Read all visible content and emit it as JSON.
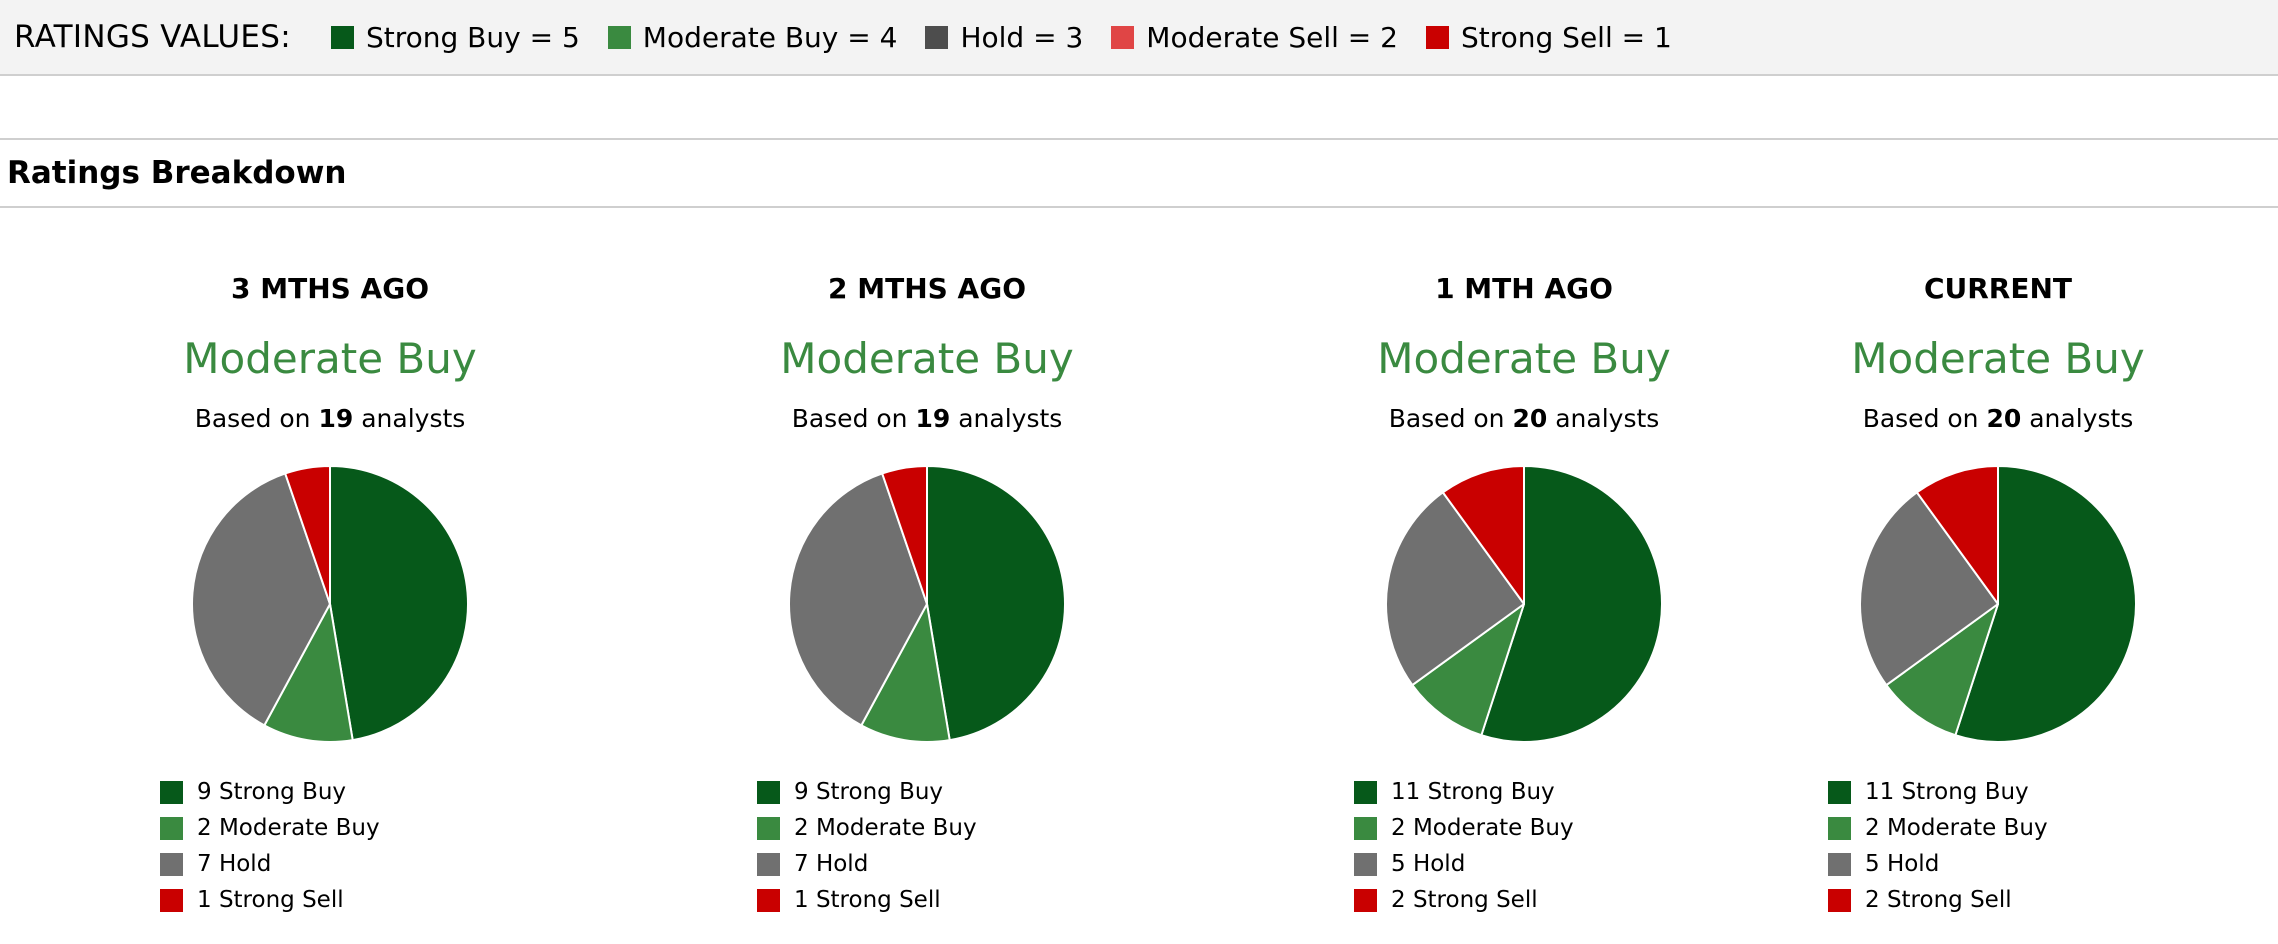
{
  "ratings_values": {
    "title": "RATINGS VALUES:",
    "items": [
      {
        "label": "Strong Buy = 5",
        "color": "#06591a"
      },
      {
        "label": "Moderate Buy = 4",
        "color": "#3a8a40"
      },
      {
        "label": "Hold = 3",
        "color": "#4d4d4d"
      },
      {
        "label": "Moderate Sell = 2",
        "color": "#e04545"
      },
      {
        "label": "Strong Sell = 1",
        "color": "#c90000"
      }
    ]
  },
  "breakdown": {
    "title": "Ratings Breakdown"
  },
  "chart_data": [
    {
      "type": "pie",
      "title": "3 MTHS AGO",
      "consensus": "Moderate Buy",
      "based_prefix": "Based on ",
      "analysts": "19",
      "based_suffix": " analysts",
      "slices": [
        {
          "label": "Strong Buy",
          "value": 9,
          "text": "9 Strong Buy",
          "color": "#06591a"
        },
        {
          "label": "Moderate Buy",
          "value": 2,
          "text": "2 Moderate Buy",
          "color": "#3a8a40"
        },
        {
          "label": "Hold",
          "value": 7,
          "text": "7 Hold",
          "color": "#707070"
        },
        {
          "label": "Strong Sell",
          "value": 1,
          "text": "1 Strong Sell",
          "color": "#c90000"
        }
      ]
    },
    {
      "type": "pie",
      "title": "2 MTHS AGO",
      "consensus": "Moderate Buy",
      "based_prefix": "Based on ",
      "analysts": "19",
      "based_suffix": " analysts",
      "slices": [
        {
          "label": "Strong Buy",
          "value": 9,
          "text": "9 Strong Buy",
          "color": "#06591a"
        },
        {
          "label": "Moderate Buy",
          "value": 2,
          "text": "2 Moderate Buy",
          "color": "#3a8a40"
        },
        {
          "label": "Hold",
          "value": 7,
          "text": "7 Hold",
          "color": "#707070"
        },
        {
          "label": "Strong Sell",
          "value": 1,
          "text": "1 Strong Sell",
          "color": "#c90000"
        }
      ]
    },
    {
      "type": "pie",
      "title": "1 MTH AGO",
      "consensus": "Moderate Buy",
      "based_prefix": "Based on ",
      "analysts": "20",
      "based_suffix": " analysts",
      "slices": [
        {
          "label": "Strong Buy",
          "value": 11,
          "text": "11 Strong Buy",
          "color": "#06591a"
        },
        {
          "label": "Moderate Buy",
          "value": 2,
          "text": "2 Moderate Buy",
          "color": "#3a8a40"
        },
        {
          "label": "Hold",
          "value": 5,
          "text": "5 Hold",
          "color": "#707070"
        },
        {
          "label": "Strong Sell",
          "value": 2,
          "text": "2 Strong Sell",
          "color": "#c90000"
        }
      ]
    },
    {
      "type": "pie",
      "title": "CURRENT",
      "consensus": "Moderate Buy",
      "based_prefix": "Based on ",
      "analysts": "20",
      "based_suffix": " analysts",
      "slices": [
        {
          "label": "Strong Buy",
          "value": 11,
          "text": "11 Strong Buy",
          "color": "#06591a"
        },
        {
          "label": "Moderate Buy",
          "value": 2,
          "text": "2 Moderate Buy",
          "color": "#3a8a40"
        },
        {
          "label": "Hold",
          "value": 5,
          "text": "5 Hold",
          "color": "#707070"
        },
        {
          "label": "Strong Sell",
          "value": 2,
          "text": "2 Strong Sell",
          "color": "#c90000"
        }
      ]
    }
  ]
}
